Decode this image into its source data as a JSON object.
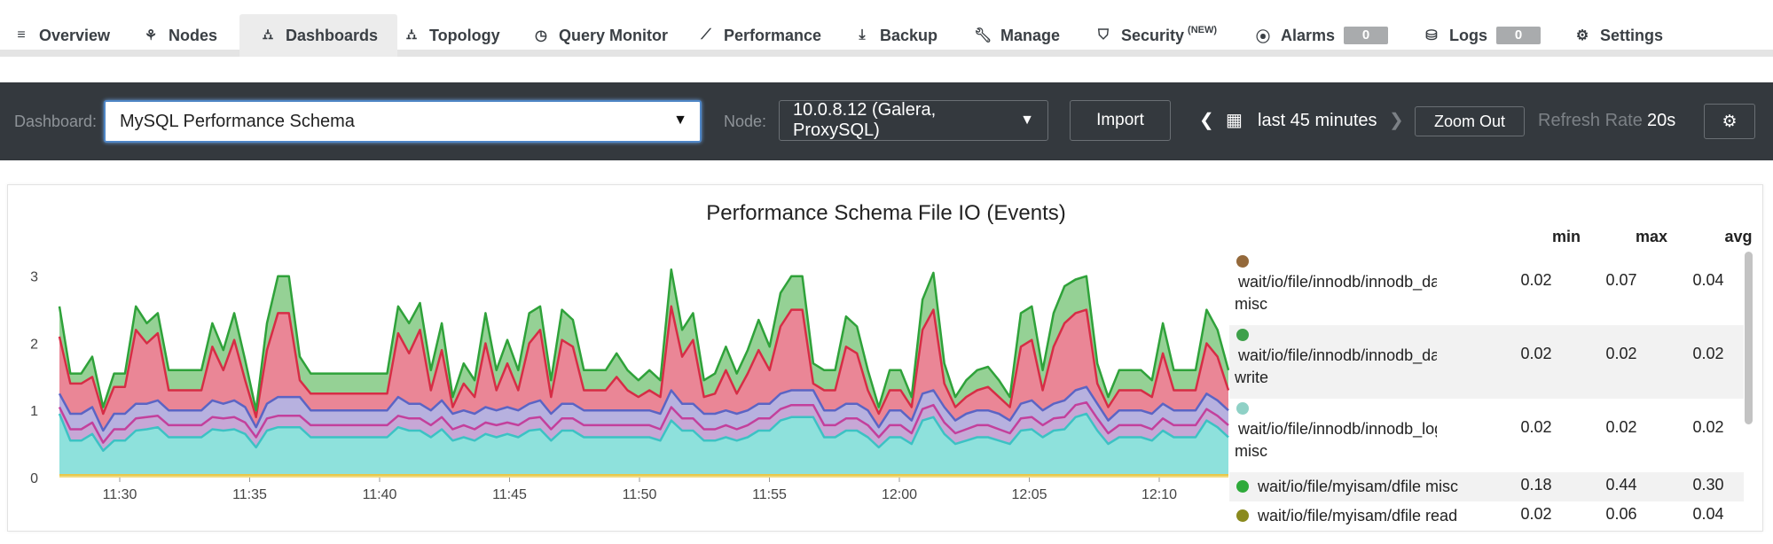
{
  "nav": {
    "overview": "Overview",
    "nodes": "Nodes",
    "dashboards": "Dashboards",
    "topology": "Topology",
    "query_monitor": "Query Monitor",
    "performance": "Performance",
    "backup": "Backup",
    "manage": "Manage",
    "security": "Security",
    "security_badge": "(NEW)",
    "alarms": "Alarms",
    "alarms_count": "0",
    "logs": "Logs",
    "logs_count": "0",
    "settings": "Settings"
  },
  "toolbar": {
    "dashboard_label": "Dashboard:",
    "dashboard_value": "MySQL Performance Schema",
    "node_label": "Node:",
    "node_value": "10.0.8.12 (Galera, ProxySQL)",
    "import": "Import",
    "time_range": "last 45 minutes",
    "zoom_out": "Zoom Out",
    "refresh_label": "Refresh Rate",
    "refresh_value": "20s"
  },
  "legend": {
    "col_min": "min",
    "col_max": "max",
    "col_avg": "avg",
    "rows": [
      {
        "line1": "wait/io/file/innodb/innodb_data_file",
        "line2": "misc",
        "color": "#94693b",
        "min": "0.02",
        "max": "0.07",
        "avg": "0.04"
      },
      {
        "line1": "wait/io/file/innodb/innodb_data_file",
        "line2": "write",
        "color": "#3ea04a",
        "min": "0.02",
        "max": "0.02",
        "avg": "0.02"
      },
      {
        "line1": "wait/io/file/innodb/innodb_log_file",
        "line2": "misc",
        "color": "#8fd1c6",
        "min": "0.02",
        "max": "0.02",
        "avg": "0.02"
      },
      {
        "line1": "wait/io/file/myisam/dfile misc",
        "line2": "",
        "color": "#2eaa3a",
        "min": "0.18",
        "max": "0.44",
        "avg": "0.30"
      },
      {
        "line1": "wait/io/file/myisam/dfile read",
        "line2": "",
        "color": "#8a8a1e",
        "min": "0.02",
        "max": "0.06",
        "avg": "0.04"
      }
    ]
  },
  "chart_data": {
    "type": "area",
    "title": "Performance Schema File IO (Events)",
    "xlabel": "",
    "ylabel": "",
    "ylim": [
      0,
      3.3
    ],
    "yticks": [
      "0",
      "1",
      "2",
      "3"
    ],
    "xticks": [
      "11:30",
      "11:35",
      "11:40",
      "11:45",
      "11:50",
      "11:55",
      "12:00",
      "12:05",
      "12:10"
    ],
    "grid": false,
    "stacked": true,
    "colors": {
      "yellow": "#e8c84a",
      "teal": "#8ee0dc",
      "magenta": "#c84ba0",
      "blue": "#b3addd",
      "red": "#e98293",
      "green": "#8fd08f"
    },
    "stack_totals": {
      "teal": [
        0.95,
        0.55,
        0.55,
        0.65,
        0.4,
        0.55,
        0.55,
        0.7,
        0.72,
        0.75,
        0.6,
        0.6,
        0.6,
        0.6,
        0.72,
        0.7,
        0.72,
        0.65,
        0.45,
        0.7,
        0.75,
        0.75,
        0.75,
        0.6,
        0.6,
        0.6,
        0.6,
        0.6,
        0.6,
        0.6,
        0.6,
        0.75,
        0.7,
        0.7,
        0.6,
        0.72,
        0.55,
        0.6,
        0.55,
        0.65,
        0.6,
        0.65,
        0.6,
        0.7,
        0.72,
        0.55,
        0.7,
        0.7,
        0.6,
        0.6,
        0.6,
        0.6,
        0.6,
        0.6,
        0.6,
        0.55,
        0.85,
        0.7,
        0.7,
        0.55,
        0.55,
        0.6,
        0.55,
        0.6,
        0.7,
        0.7,
        0.85,
        0.9,
        0.9,
        0.9,
        0.6,
        0.6,
        0.7,
        0.7,
        0.6,
        0.45,
        0.6,
        0.6,
        0.5,
        0.85,
        0.9,
        0.65,
        0.5,
        0.55,
        0.6,
        0.6,
        0.55,
        0.5,
        0.7,
        0.72,
        0.6,
        0.7,
        0.72,
        0.9,
        0.95,
        0.7,
        0.5,
        0.6,
        0.6,
        0.6,
        0.55,
        0.7,
        0.6,
        0.6,
        0.6,
        0.85,
        0.75,
        0.6
      ],
      "magenta": [
        1.05,
        0.72,
        0.72,
        0.82,
        0.52,
        0.72,
        0.72,
        0.88,
        0.9,
        0.92,
        0.78,
        0.78,
        0.78,
        0.78,
        0.9,
        0.88,
        0.9,
        0.82,
        0.6,
        0.88,
        0.92,
        0.92,
        0.92,
        0.78,
        0.78,
        0.78,
        0.78,
        0.78,
        0.78,
        0.78,
        0.78,
        0.92,
        0.88,
        0.88,
        0.78,
        0.9,
        0.72,
        0.78,
        0.72,
        0.82,
        0.78,
        0.82,
        0.78,
        0.88,
        0.9,
        0.72,
        0.88,
        0.88,
        0.78,
        0.78,
        0.78,
        0.78,
        0.78,
        0.78,
        0.78,
        0.72,
        1.05,
        0.88,
        0.88,
        0.72,
        0.72,
        0.78,
        0.72,
        0.78,
        0.88,
        0.88,
        1.02,
        1.08,
        1.08,
        1.08,
        0.78,
        0.78,
        0.88,
        0.88,
        0.78,
        0.6,
        0.78,
        0.78,
        0.66,
        1.02,
        1.08,
        0.82,
        0.66,
        0.72,
        0.78,
        0.78,
        0.72,
        0.66,
        0.88,
        0.9,
        0.78,
        0.88,
        0.9,
        1.08,
        1.12,
        0.88,
        0.66,
        0.78,
        0.78,
        0.78,
        0.72,
        0.88,
        0.78,
        0.78,
        0.78,
        1.02,
        0.92,
        0.78
      ],
      "blue": [
        1.25,
        0.95,
        0.95,
        1.05,
        0.7,
        0.95,
        0.95,
        1.1,
        1.1,
        1.15,
        1.0,
        1.0,
        1.0,
        1.0,
        1.15,
        1.1,
        1.15,
        1.05,
        0.75,
        1.1,
        1.2,
        1.2,
        1.2,
        1.0,
        1.0,
        1.0,
        1.0,
        1.0,
        1.0,
        1.0,
        1.0,
        1.2,
        1.1,
        1.1,
        1.0,
        1.15,
        0.95,
        1.0,
        0.95,
        1.05,
        1.0,
        1.05,
        1.0,
        1.1,
        1.15,
        0.95,
        1.1,
        1.1,
        1.0,
        1.0,
        1.0,
        1.0,
        1.0,
        1.0,
        1.0,
        0.95,
        1.3,
        1.1,
        1.1,
        0.95,
        0.95,
        1.0,
        0.95,
        1.0,
        1.1,
        1.1,
        1.25,
        1.3,
        1.3,
        1.3,
        1.0,
        1.0,
        1.1,
        1.1,
        1.0,
        0.75,
        1.0,
        1.0,
        0.85,
        1.25,
        1.3,
        1.05,
        0.85,
        0.95,
        1.0,
        1.0,
        0.95,
        0.85,
        1.1,
        1.15,
        1.0,
        1.1,
        1.15,
        1.3,
        1.35,
        1.1,
        0.85,
        1.0,
        1.0,
        1.0,
        0.95,
        1.1,
        1.0,
        1.0,
        1.0,
        1.25,
        1.15,
        1.0
      ],
      "red": [
        2.1,
        1.4,
        1.4,
        1.5,
        0.95,
        1.35,
        1.35,
        2.2,
        2.0,
        2.15,
        1.3,
        1.3,
        1.3,
        1.3,
        1.95,
        1.6,
        2.05,
        1.45,
        0.9,
        1.9,
        2.45,
        2.45,
        1.45,
        1.25,
        1.25,
        1.25,
        1.25,
        1.25,
        1.25,
        1.25,
        1.25,
        2.15,
        1.85,
        2.2,
        1.3,
        1.9,
        1.05,
        1.4,
        1.2,
        2.0,
        1.3,
        1.7,
        1.3,
        2.0,
        2.2,
        1.2,
        2.05,
        1.95,
        1.3,
        1.3,
        1.3,
        1.5,
        1.3,
        1.2,
        1.3,
        1.2,
        2.55,
        1.8,
        2.05,
        1.2,
        1.25,
        1.6,
        1.25,
        1.55,
        1.9,
        1.6,
        2.25,
        2.5,
        2.5,
        1.4,
        1.3,
        1.3,
        1.95,
        1.85,
        1.3,
        0.95,
        1.3,
        1.3,
        1.05,
        2.2,
        2.5,
        1.4,
        1.05,
        1.2,
        1.3,
        1.35,
        1.2,
        1.05,
        1.95,
        2.05,
        1.3,
        1.95,
        2.3,
        2.45,
        2.5,
        1.4,
        1.05,
        1.3,
        1.3,
        1.3,
        1.2,
        1.85,
        1.3,
        1.3,
        1.3,
        2.0,
        1.8,
        1.3
      ],
      "green": [
        2.55,
        1.55,
        1.55,
        1.8,
        1.05,
        1.55,
        1.55,
        2.55,
        2.3,
        2.45,
        1.6,
        1.6,
        1.6,
        1.6,
        2.3,
        1.9,
        2.45,
        1.75,
        1.0,
        2.3,
        3.0,
        3.0,
        1.8,
        1.55,
        1.55,
        1.55,
        1.55,
        1.55,
        1.55,
        1.55,
        1.55,
        2.55,
        2.3,
        2.6,
        1.6,
        2.3,
        1.2,
        1.7,
        1.45,
        2.45,
        1.6,
        2.05,
        1.6,
        2.45,
        2.55,
        1.45,
        2.5,
        2.35,
        1.6,
        1.6,
        1.6,
        1.85,
        1.6,
        1.45,
        1.6,
        1.45,
        3.1,
        2.2,
        2.45,
        1.45,
        1.55,
        1.95,
        1.55,
        1.9,
        2.35,
        1.95,
        2.75,
        3.0,
        3.0,
        1.7,
        1.6,
        1.6,
        2.4,
        2.25,
        1.6,
        1.05,
        1.6,
        1.6,
        1.2,
        2.65,
        3.05,
        1.7,
        1.2,
        1.45,
        1.6,
        1.65,
        1.45,
        1.2,
        2.45,
        2.55,
        1.6,
        2.45,
        2.85,
        2.95,
        3.0,
        1.7,
        1.2,
        1.6,
        1.6,
        1.6,
        1.45,
        2.3,
        1.6,
        1.6,
        1.6,
        2.5,
        2.2,
        1.6
      ]
    }
  }
}
